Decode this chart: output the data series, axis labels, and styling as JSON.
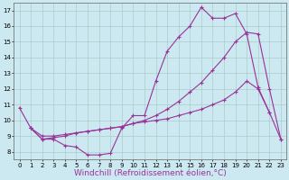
{
  "background_color": "#cce8f0",
  "grid_color": "#aacccc",
  "line_color": "#993399",
  "marker": "+",
  "xlabel": "Windchill (Refroidissement éolien,°C)",
  "xlabel_fontsize": 6.5,
  "xlim": [
    -0.5,
    23.5
  ],
  "ylim": [
    7.5,
    17.5
  ],
  "yticks": [
    8,
    9,
    10,
    11,
    12,
    13,
    14,
    15,
    16,
    17
  ],
  "xticks": [
    0,
    1,
    2,
    3,
    4,
    5,
    6,
    7,
    8,
    9,
    10,
    11,
    12,
    13,
    14,
    15,
    16,
    17,
    18,
    19,
    20,
    21,
    22,
    23
  ],
  "series": [
    {
      "x": [
        0,
        1,
        2,
        3,
        4,
        5,
        6,
        7,
        8,
        9,
        10,
        11,
        12,
        13,
        14,
        15,
        16,
        17,
        18,
        19,
        20,
        21,
        22
      ],
      "y": [
        10.8,
        9.5,
        8.8,
        8.8,
        8.4,
        8.3,
        7.8,
        7.8,
        7.9,
        9.5,
        10.3,
        10.3,
        12.5,
        14.4,
        15.3,
        16.0,
        17.2,
        16.5,
        16.5,
        16.8,
        15.5,
        12.1,
        10.5
      ]
    },
    {
      "x": [
        1,
        2,
        3,
        4,
        5,
        6,
        7,
        8,
        9,
        10,
        11,
        12,
        13,
        14,
        15,
        16,
        17,
        18,
        19,
        20,
        21,
        22,
        23
      ],
      "y": [
        9.5,
        9.0,
        9.0,
        9.1,
        9.2,
        9.3,
        9.4,
        9.5,
        9.6,
        9.8,
        10.0,
        10.3,
        10.7,
        11.2,
        11.8,
        12.4,
        13.2,
        14.0,
        15.0,
        15.6,
        15.5,
        12.0,
        8.8
      ]
    },
    {
      "x": [
        1,
        2,
        3,
        4,
        5,
        6,
        7,
        8,
        9,
        10,
        11,
        12,
        13,
        14,
        15,
        16,
        17,
        18,
        19,
        20,
        21,
        22,
        23
      ],
      "y": [
        9.5,
        8.8,
        8.9,
        9.0,
        9.2,
        9.3,
        9.4,
        9.5,
        9.6,
        9.8,
        9.9,
        10.0,
        10.1,
        10.3,
        10.5,
        10.7,
        11.0,
        11.3,
        11.8,
        12.5,
        12.0,
        10.5,
        8.8
      ]
    }
  ]
}
